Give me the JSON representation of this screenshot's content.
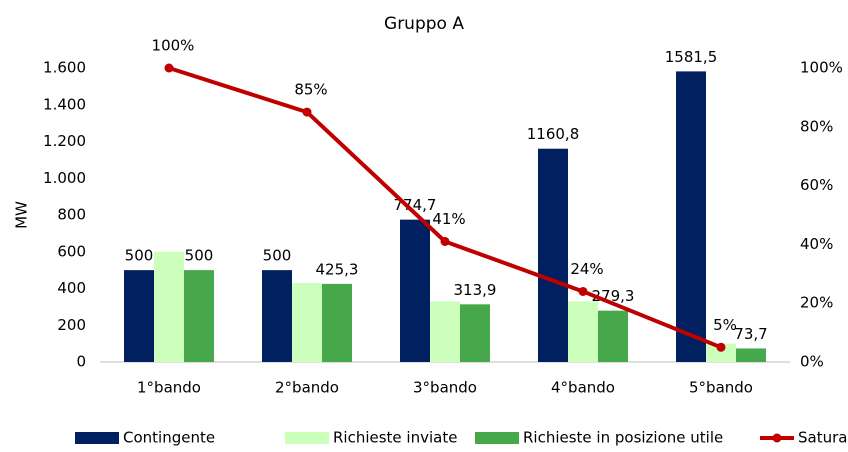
{
  "chart_data": {
    "type": "bar",
    "title": "Gruppo A",
    "y_label": "MW",
    "categories": [
      "1°bando",
      "2°bando",
      "3°bando",
      "4°bando",
      "5°bando"
    ],
    "series": [
      {
        "name": "Contingente",
        "color": "#002060",
        "values": [
          500,
          500,
          774.7,
          1160.8,
          1581.5
        ],
        "value_labels": [
          "500",
          "500",
          "774,7",
          "1160,8",
          "1581,5"
        ]
      },
      {
        "name": "Richieste inviate",
        "color": "#ccffbb",
        "values": [
          600,
          430,
          330,
          330,
          100
        ]
      },
      {
        "name": "Richieste in posizione utile",
        "color": "#46a84b",
        "values": [
          500,
          425.3,
          313.9,
          279.3,
          73.7
        ],
        "value_labels": [
          "500",
          "425,3",
          "313,9",
          "279,3",
          "73,7"
        ]
      },
      {
        "name": "Saturazione",
        "type": "line",
        "axis": "y2",
        "color": "#c00000",
        "values": [
          100,
          85,
          41,
          24,
          5
        ],
        "value_labels": [
          "100%",
          "85%",
          "41%",
          "24%",
          "5%"
        ]
      }
    ],
    "ylim": [
      0,
      1600
    ],
    "yticks": [
      0,
      200,
      400,
      600,
      800,
      {
        "value": 1000,
        "label": "1.000"
      },
      {
        "value": 1200,
        "label": "1.200"
      },
      {
        "value": 1400,
        "label": "1.400"
      },
      {
        "value": 1600,
        "label": "1.600"
      }
    ],
    "y2lim": [
      0,
      100
    ],
    "y2ticks": [
      {
        "value": 0,
        "label": "0%"
      },
      {
        "value": 20,
        "label": "20%"
      },
      {
        "value": 40,
        "label": "40%"
      },
      {
        "value": 60,
        "label": "60%"
      },
      {
        "value": 80,
        "label": "80%"
      },
      {
        "value": 100,
        "label": "100%"
      }
    ],
    "legend": "bottom"
  }
}
